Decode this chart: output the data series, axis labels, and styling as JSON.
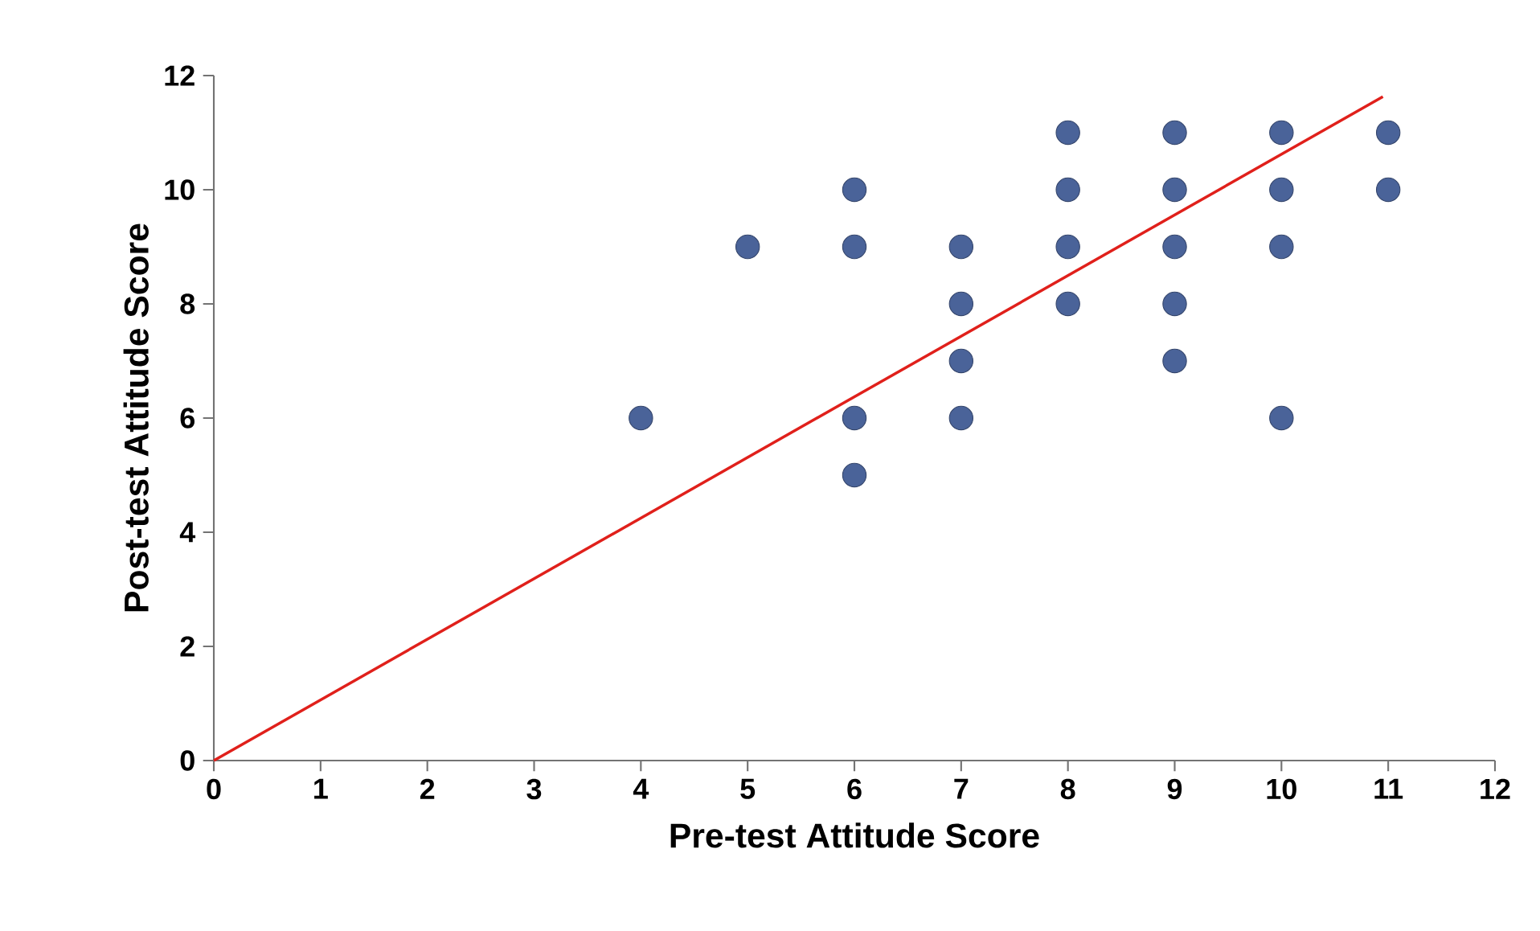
{
  "chart_data": {
    "type": "scatter",
    "xlabel": "Pre-test Attitude Score",
    "ylabel": "Post-test Attitude Score",
    "xlim": [
      0,
      12
    ],
    "ylim": [
      0,
      12
    ],
    "xticks": [
      0,
      1,
      2,
      3,
      4,
      5,
      6,
      7,
      8,
      9,
      10,
      11,
      12
    ],
    "yticks": [
      0,
      2,
      4,
      6,
      8,
      10,
      12
    ],
    "grid": false,
    "series": [
      {
        "marker": "circle",
        "color": "#4a6399",
        "x": [
          4,
          5,
          6,
          6,
          6,
          6,
          7,
          7,
          7,
          7,
          8,
          8,
          8,
          8,
          9,
          9,
          9,
          9,
          9,
          10,
          10,
          10,
          10,
          11,
          11
        ],
        "values": [
          6,
          9,
          10,
          9,
          6,
          5,
          9,
          8,
          7,
          6,
          11,
          10,
          9,
          8,
          11,
          10,
          9,
          8,
          7,
          11,
          10,
          9,
          6,
          11,
          10
        ]
      },
      {
        "type": "line",
        "marker": "none",
        "color": "#e0201b",
        "x": [
          0,
          10.95
        ],
        "values": [
          0,
          11.63
        ]
      }
    ]
  }
}
